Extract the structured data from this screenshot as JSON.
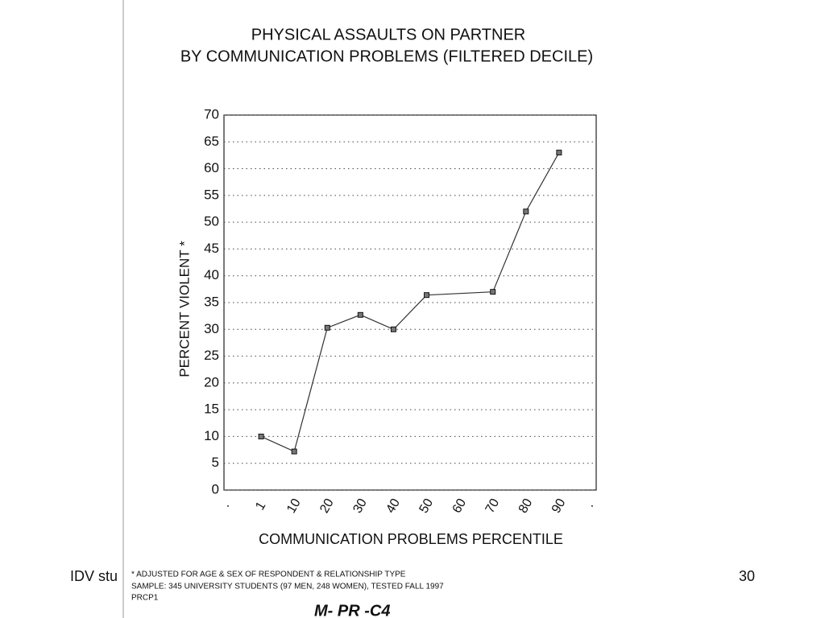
{
  "slide": {
    "footer_left": "IDV stu",
    "page_number": "30"
  },
  "chart_data": {
    "type": "line",
    "title": "PHYSICAL ASSAULTS ON PARTNER",
    "subtitle": "BY COMMUNICATION PROBLEMS (FILTERED DECILE)",
    "y_label": "PERCENT VIOLENT *",
    "x_label": "COMMUNICATION PROBLEMS PERCENTILE",
    "categories": [
      "·",
      "1",
      "10",
      "20",
      "30",
      "40",
      "50",
      "60",
      "70",
      "80",
      "90",
      "·"
    ],
    "x": [
      "1",
      "10",
      "20",
      "30",
      "40",
      "50",
      "70",
      "80",
      "90"
    ],
    "values": [
      10,
      7.2,
      30.3,
      32.7,
      30,
      36.4,
      37,
      52,
      63
    ],
    "color": "#333333",
    "ylim": [
      0,
      70
    ],
    "yticks": [
      0,
      5,
      10,
      15,
      20,
      25,
      30,
      35,
      40,
      45,
      50,
      55,
      60,
      65,
      70
    ],
    "grid": true,
    "notes": [
      "* ADJUSTED FOR AGE & SEX OF RESPONDENT & RELATIONSHIP TYPE",
      "SAMPLE: 345 UNIVERSITY STUDENTS (97 MEN, 248 WOMEN), TESTED FALL 1997",
      "PRCP1"
    ],
    "handwritten": "M- PR -C4"
  }
}
